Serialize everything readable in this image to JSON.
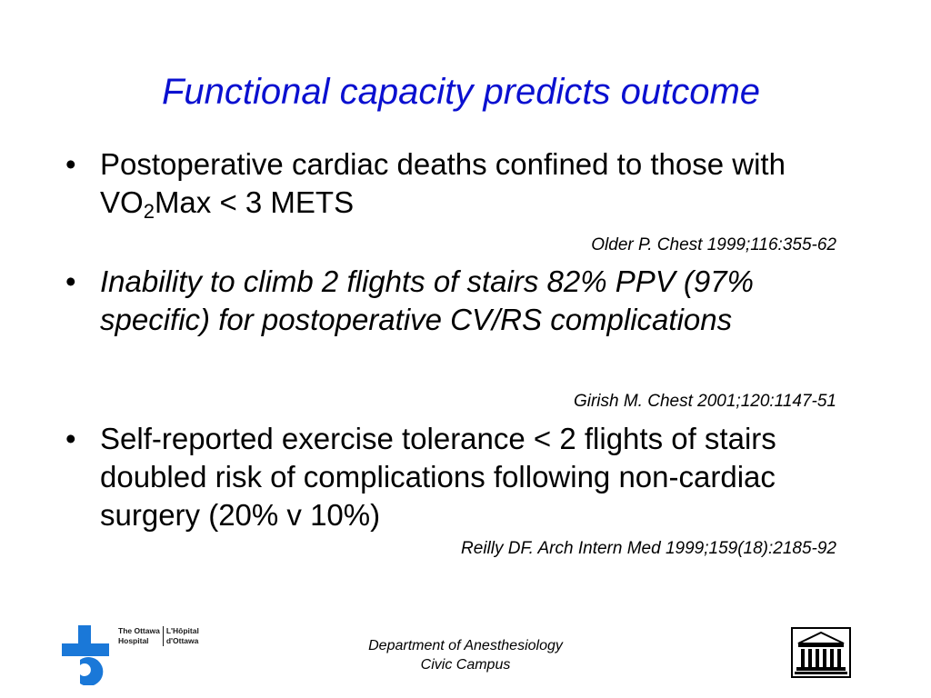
{
  "title": "Functional capacity predicts outcome",
  "bullets": [
    {
      "marker": "•",
      "text_part1": "Postoperative cardiac deaths confined to those with VO",
      "subscript": "2",
      "text_part2": "Max < 3 METS",
      "reference": "Older P. Chest 1999;116:355-62"
    },
    {
      "marker": "•",
      "text": "Inability to climb 2 flights of stairs 82% PPV (97% specific) for postoperative CV/RS complications",
      "reference": "Girish M. Chest 2001;120:1147-51"
    },
    {
      "marker": "•",
      "text": "Self-reported exercise tolerance < 2 flights of stairs doubled risk of complications following non-cardiac surgery (20% v 10%)",
      "reference": "Reilly DF. Arch Intern Med 1999;159(18):2185-92"
    }
  ],
  "footer": {
    "line1": "Department of Anesthesiology",
    "line2": "Civic Campus"
  },
  "logo": {
    "en_line1": "The Ottawa",
    "en_line2": "Hospital",
    "fr_line1": "L'Hôpital",
    "fr_line2": "d'Ottawa"
  },
  "colors": {
    "title": "#0a10d0",
    "logo_blue": "#1a78d8"
  }
}
